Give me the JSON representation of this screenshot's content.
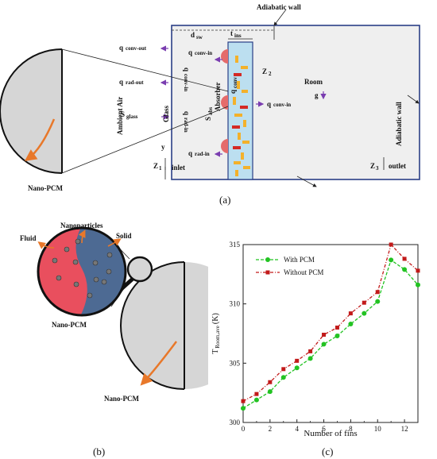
{
  "panel_a": {
    "caption": "(a)",
    "top_wall": "Adiabatic wall",
    "right_wall": "Adiabatic wall",
    "ambient": "Ambient Air",
    "glass": "Glass",
    "absorber": "Absorber",
    "room": "Room",
    "gravity": "g",
    "inlet": "inlet",
    "outlet": "outlet",
    "nano_pcm": "Nano-PCM",
    "dim": {
      "d": "d",
      "d_sub": "sw",
      "t": "t",
      "t_sub": "ins",
      "y": "y",
      "z1": "Z",
      "z1_sub": "1",
      "z2": "Z",
      "z2_sub": "2",
      "z3": "Z",
      "z3_sub": "3"
    },
    "q_conv_out": {
      "q": "q",
      "sub": "conv-out"
    },
    "q_rad_out": {
      "q": "q",
      "sub": "rad-out"
    },
    "s_glass": {
      "s": "S",
      "sub": "glass"
    },
    "q_conv_in_top": {
      "q": "q",
      "sub": "conv-in"
    },
    "q_conv_in_mid": {
      "q": "q",
      "sub": "conv-in"
    },
    "q_rad_in_bot": {
      "q": "q",
      "sub": "rad-in"
    },
    "q_conv_in_vert": {
      "q": "q",
      "sub": "conv-in"
    },
    "q_rad_in_vert": {
      "q": "q",
      "sub": "rad-in"
    },
    "s_abs": {
      "s": "S",
      "sub": "abs"
    },
    "q_conv": {
      "q": "q",
      "sub": "conv"
    }
  },
  "panel_b": {
    "caption": "(b)",
    "nanoparticles": "Nanoparticles",
    "fluid": "Fluid",
    "solid": "Solid",
    "nano_pcm_1": "Nano-PCM",
    "nano_pcm_2": "Nano-PCM"
  },
  "panel_c": {
    "caption": "(c)"
  },
  "colors": {
    "fluid": "#e94f5e",
    "solid": "#4d6a93",
    "arrow_orange": "#e8782a",
    "purple_arrow": "#7a3db0",
    "domain_border": "#2a3f86",
    "absorber_fill": "#bcdff0",
    "pcm_cap": "#e56b6b",
    "with_pcm": "#22c322",
    "without_pcm": "#c21a1a"
  },
  "chart_data": {
    "type": "line",
    "xlabel": "Number of fins",
    "ylabel": "T",
    "ylabel_sub": "Room,ave",
    "ylabel_unit": "(K)",
    "xlim": [
      0,
      13
    ],
    "ylim": [
      300,
      315
    ],
    "x_ticks": [
      "0",
      "2",
      "4",
      "6",
      "8",
      "10",
      "12"
    ],
    "y_ticks": [
      "300",
      "305",
      "310",
      "315"
    ],
    "legend_position": "top-left",
    "grid": false,
    "x": [
      0,
      1,
      2,
      3,
      4,
      5,
      6,
      7,
      8,
      9,
      10,
      11,
      12,
      13
    ],
    "series": [
      {
        "name": "With PCM",
        "color": "#22c322",
        "style": "dashed",
        "marker": "circle",
        "values": [
          301.2,
          301.9,
          302.6,
          303.8,
          304.6,
          305.4,
          306.6,
          307.3,
          308.3,
          309.2,
          310.2,
          313.7,
          312.9,
          311.6
        ]
      },
      {
        "name": "Without PCM",
        "color": "#c21a1a",
        "style": "dash-dot",
        "marker": "square",
        "values": [
          301.8,
          302.4,
          303.4,
          304.5,
          305.2,
          306.0,
          307.4,
          308.0,
          309.2,
          310.1,
          311.0,
          315.0,
          313.8,
          312.8
        ]
      }
    ]
  }
}
